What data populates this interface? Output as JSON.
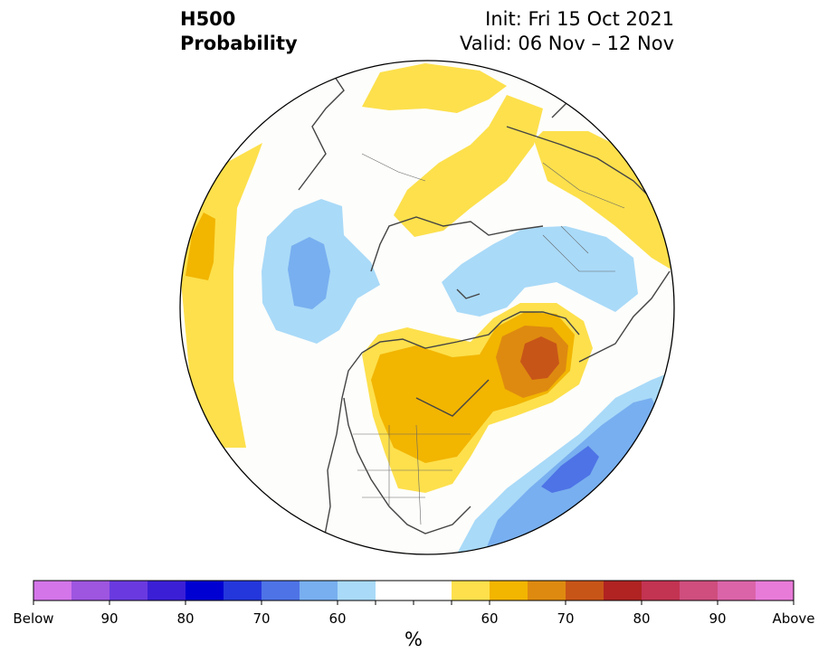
{
  "title": {
    "variable": "H500",
    "product": "Probability",
    "init": "Init: Fri 15 Oct 2021",
    "valid": "Valid: 06 Nov – 12 Nov"
  },
  "map": {
    "projection": "north-polar-stereographic",
    "region": "Northern Hemisphere (North America / Arctic / Europe)",
    "features": [
      {
        "name": "below-normal-central-pacific",
        "category": "below",
        "max_level": "60-70"
      },
      {
        "name": "below-normal-europe",
        "category": "below",
        "max_level": "50-60"
      },
      {
        "name": "below-normal-western-atlantic",
        "category": "below",
        "max_level": "70-80"
      },
      {
        "name": "above-normal-eastern-canada",
        "category": "above",
        "max_level": "70-80"
      },
      {
        "name": "above-normal-central-north-america",
        "category": "above",
        "max_level": "60-70"
      },
      {
        "name": "above-normal-eastern-pacific",
        "category": "above",
        "max_level": "60-70"
      },
      {
        "name": "above-normal-siberia",
        "category": "above",
        "max_level": "50-60"
      },
      {
        "name": "above-normal-northeast-asia",
        "category": "above",
        "max_level": "50-60"
      }
    ]
  },
  "colorbar": {
    "colors": [
      "#d475ea",
      "#9e55e0",
      "#6a3ae0",
      "#3b1fd6",
      "#0000d2",
      "#2437dc",
      "#4e73e6",
      "#78aff0",
      "#a9daf8",
      "#ffffff",
      "#ffffff",
      "#fde04c",
      "#f2b500",
      "#de8a10",
      "#c85518",
      "#b02322",
      "#c33352",
      "#cf4e7d",
      "#db64a8",
      "#e87bd8"
    ],
    "labels": [
      "Below",
      "90",
      "80",
      "70",
      "60",
      "60",
      "70",
      "80",
      "90",
      "Above"
    ],
    "unit": "%"
  }
}
